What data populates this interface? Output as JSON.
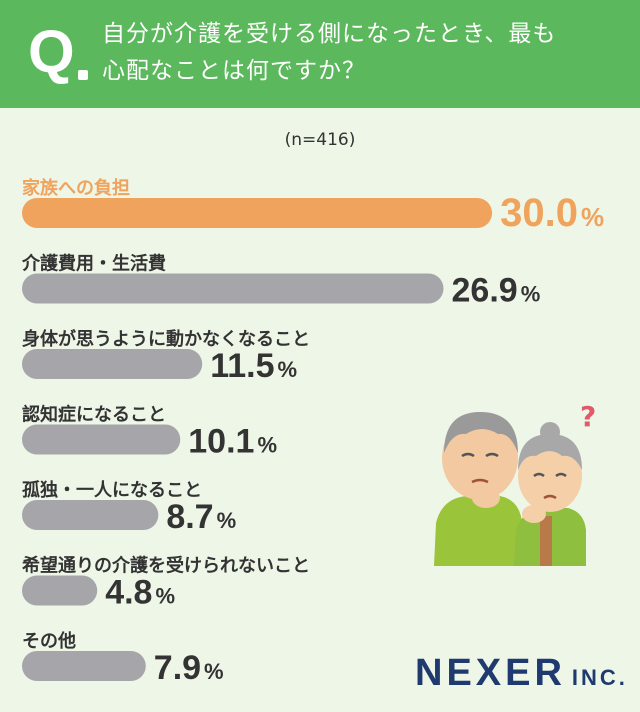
{
  "header": {
    "q_letter": "Q",
    "question_line1": "自分が介護を受ける側になったとき、最も",
    "question_line2": "心配なことは何ですか？"
  },
  "sample_size": "(n=416)",
  "logo": {
    "name": "NEXER",
    "suffix": "INC."
  },
  "colors": {
    "highlight": "#f0a35c",
    "bar": "#a6a6aa",
    "header": "#5cb85c",
    "label_dark": "#333333"
  },
  "chart_data": {
    "type": "bar",
    "orientation": "horizontal",
    "unit": "%",
    "categories": [
      "家族への負担",
      "介護費用・生活費",
      "身体が思うように動かなくなること",
      "認知症になること",
      "孤独・一人になること",
      "希望通りの介護を受けられないこと",
      "その他"
    ],
    "values": [
      30.0,
      26.9,
      11.5,
      10.1,
      8.7,
      4.8,
      7.9
    ],
    "value_labels": [
      "30.0",
      "26.9",
      "11.5",
      "10.1",
      "8.7",
      "4.8",
      "7.9"
    ],
    "highlight_index": 0
  }
}
